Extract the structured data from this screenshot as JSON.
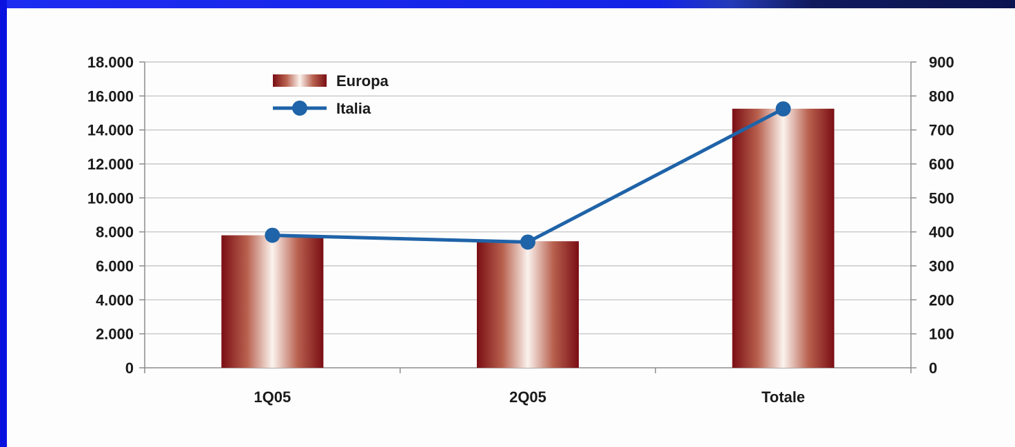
{
  "chart_data": {
    "type": "bar",
    "categories": [
      "1Q05",
      "2Q05",
      "Totale"
    ],
    "series": [
      {
        "name": "Europa",
        "type": "bar",
        "axis": "left",
        "values": [
          7800,
          7450,
          15250
        ],
        "color": "#8b1a1a"
      },
      {
        "name": "Italia",
        "type": "line",
        "axis": "right",
        "values": [
          390,
          370,
          762
        ],
        "color": "#1f63a8"
      }
    ],
    "y_left": {
      "lim": [
        0,
        18000
      ],
      "ticks": [
        0,
        2000,
        4000,
        6000,
        8000,
        10000,
        12000,
        14000,
        16000,
        18000
      ],
      "tick_labels": [
        "0",
        "2.000",
        "4.000",
        "6.000",
        "8.000",
        "10.000",
        "12.000",
        "14.000",
        "16.000",
        "18.000"
      ]
    },
    "y_right": {
      "lim": [
        0,
        900
      ],
      "ticks": [
        0,
        100,
        200,
        300,
        400,
        500,
        600,
        700,
        800,
        900
      ],
      "tick_labels": [
        "0",
        "100",
        "200",
        "300",
        "400",
        "500",
        "600",
        "700",
        "800",
        "900"
      ]
    },
    "grid": true,
    "legend": {
      "position": "top-left",
      "items": [
        "Europa",
        "Italia"
      ]
    }
  }
}
